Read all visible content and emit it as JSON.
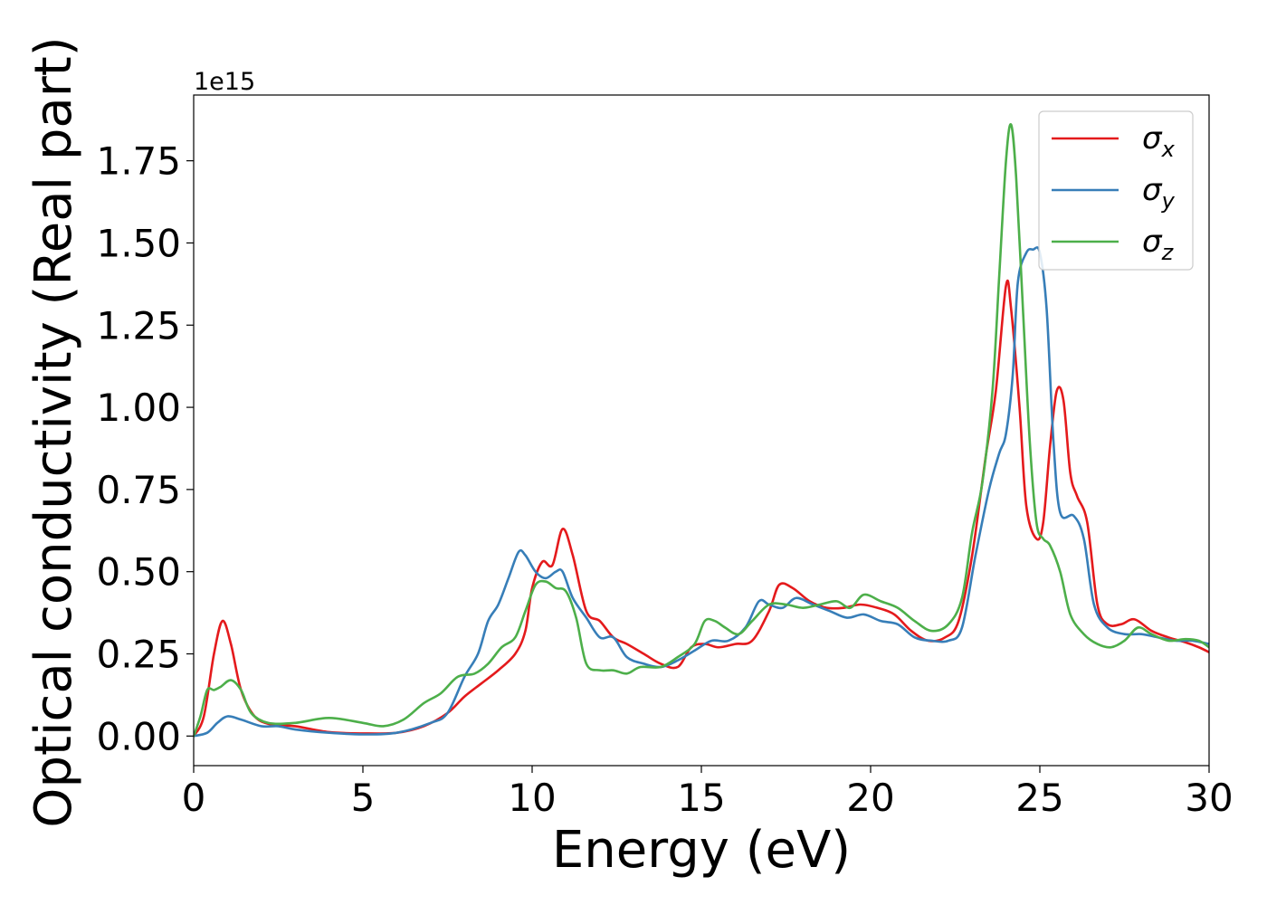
{
  "chart_data": {
    "type": "line",
    "xlabel": "Energy (eV)",
    "ylabel": "Optical conductivity (Real part)",
    "y_offset_text": "1e15",
    "xlim": [
      0,
      30
    ],
    "ylim": [
      -0.09,
      1.95
    ],
    "xticks": [
      0,
      5,
      10,
      15,
      20,
      25,
      30
    ],
    "xtick_labels": [
      "0",
      "5",
      "10",
      "15",
      "20",
      "25",
      "30"
    ],
    "yticks": [
      0.0,
      0.25,
      0.5,
      0.75,
      1.0,
      1.25,
      1.5,
      1.75
    ],
    "ytick_labels": [
      "0.00",
      "0.25",
      "0.50",
      "0.75",
      "1.00",
      "1.25",
      "1.50",
      "1.75"
    ],
    "grid": false,
    "legend_position": "top-right",
    "series": [
      {
        "name": "σx",
        "legend_base": "σ",
        "legend_sub": "x",
        "color": "#e41a1c",
        "x": [
          0,
          0.3,
          0.6,
          0.85,
          1.1,
          1.4,
          1.8,
          2.3,
          3.0,
          4.0,
          5.0,
          6.0,
          6.8,
          7.5,
          8.0,
          8.5,
          9.0,
          9.5,
          9.8,
          10.0,
          10.3,
          10.6,
          10.9,
          11.2,
          11.6,
          12.0,
          12.4,
          12.8,
          13.3,
          13.8,
          14.3,
          14.7,
          15.1,
          15.5,
          16.0,
          16.5,
          17.0,
          17.3,
          17.7,
          18.2,
          18.7,
          19.2,
          19.7,
          20.2,
          20.7,
          21.2,
          21.7,
          22.2,
          22.6,
          23.0,
          23.4,
          23.7,
          24.0,
          24.15,
          24.4,
          24.6,
          24.9,
          25.1,
          25.3,
          25.5,
          25.7,
          25.9,
          26.1,
          26.4,
          26.7,
          27.0,
          27.4,
          27.8,
          28.3,
          28.8,
          29.3,
          29.7,
          30.0
        ],
        "y": [
          0.0,
          0.06,
          0.25,
          0.35,
          0.28,
          0.14,
          0.06,
          0.035,
          0.03,
          0.012,
          0.008,
          0.01,
          0.03,
          0.07,
          0.12,
          0.16,
          0.2,
          0.25,
          0.32,
          0.45,
          0.53,
          0.52,
          0.63,
          0.55,
          0.38,
          0.35,
          0.3,
          0.28,
          0.25,
          0.22,
          0.21,
          0.27,
          0.28,
          0.27,
          0.28,
          0.29,
          0.38,
          0.46,
          0.45,
          0.41,
          0.39,
          0.39,
          0.4,
          0.39,
          0.37,
          0.32,
          0.29,
          0.3,
          0.35,
          0.55,
          0.85,
          1.05,
          1.37,
          1.3,
          1.0,
          0.7,
          0.6,
          0.65,
          0.88,
          1.05,
          1.02,
          0.8,
          0.73,
          0.65,
          0.4,
          0.34,
          0.34,
          0.355,
          0.32,
          0.3,
          0.285,
          0.27,
          0.255
        ]
      },
      {
        "name": "σy",
        "legend_base": "σ",
        "legend_sub": "y",
        "color": "#377eb8",
        "x": [
          0,
          0.4,
          0.7,
          1.0,
          1.4,
          2.0,
          2.5,
          3.0,
          4.0,
          5.0,
          6.0,
          7.0,
          7.5,
          8.0,
          8.4,
          8.7,
          9.0,
          9.3,
          9.6,
          9.8,
          10.1,
          10.4,
          10.7,
          10.9,
          11.2,
          11.6,
          12.0,
          12.4,
          12.8,
          13.3,
          13.8,
          14.3,
          14.8,
          15.3,
          15.8,
          16.3,
          16.7,
          17.0,
          17.4,
          17.8,
          18.3,
          18.8,
          19.3,
          19.8,
          20.3,
          20.8,
          21.3,
          21.8,
          22.3,
          22.7,
          23.1,
          23.5,
          23.8,
          24.0,
          24.2,
          24.35,
          24.6,
          24.8,
          25.0,
          25.2,
          25.4,
          25.6,
          26.0,
          26.3,
          26.6,
          27.0,
          27.5,
          28.0,
          28.5,
          29.0,
          29.5,
          30.0
        ],
        "y": [
          0.0,
          0.01,
          0.04,
          0.06,
          0.05,
          0.03,
          0.03,
          0.02,
          0.01,
          0.005,
          0.01,
          0.04,
          0.07,
          0.18,
          0.25,
          0.35,
          0.4,
          0.48,
          0.56,
          0.55,
          0.5,
          0.48,
          0.5,
          0.5,
          0.42,
          0.36,
          0.3,
          0.3,
          0.24,
          0.22,
          0.21,
          0.23,
          0.26,
          0.29,
          0.29,
          0.33,
          0.41,
          0.4,
          0.39,
          0.42,
          0.4,
          0.38,
          0.36,
          0.37,
          0.35,
          0.34,
          0.3,
          0.29,
          0.29,
          0.33,
          0.55,
          0.75,
          0.86,
          0.92,
          1.1,
          1.38,
          1.47,
          1.48,
          1.47,
          1.3,
          0.9,
          0.68,
          0.67,
          0.6,
          0.4,
          0.33,
          0.31,
          0.31,
          0.3,
          0.29,
          0.29,
          0.28
        ]
      },
      {
        "name": "σz",
        "legend_base": "σ",
        "legend_sub": "z",
        "color": "#4daf4a",
        "x": [
          0,
          0.2,
          0.4,
          0.6,
          0.8,
          1.1,
          1.4,
          1.7,
          2.2,
          3.0,
          4.0,
          5.0,
          5.6,
          6.2,
          6.8,
          7.3,
          7.8,
          8.3,
          8.7,
          9.1,
          9.5,
          9.8,
          10.1,
          10.4,
          10.7,
          11.0,
          11.3,
          11.6,
          12.0,
          12.4,
          12.8,
          13.2,
          13.8,
          14.3,
          14.8,
          15.1,
          15.4,
          15.7,
          16.1,
          16.5,
          17.0,
          17.5,
          18.0,
          18.5,
          19.0,
          19.4,
          19.8,
          20.3,
          20.8,
          21.3,
          21.8,
          22.3,
          22.7,
          23.0,
          23.3,
          23.6,
          23.8,
          24.0,
          24.15,
          24.3,
          24.5,
          24.7,
          24.9,
          25.1,
          25.3,
          25.6,
          25.9,
          26.3,
          26.7,
          27.1,
          27.5,
          27.9,
          28.3,
          28.8,
          29.3,
          29.7,
          30.0
        ],
        "y": [
          0.0,
          0.06,
          0.14,
          0.14,
          0.15,
          0.17,
          0.14,
          0.07,
          0.04,
          0.04,
          0.055,
          0.04,
          0.03,
          0.05,
          0.1,
          0.13,
          0.18,
          0.19,
          0.22,
          0.27,
          0.3,
          0.38,
          0.46,
          0.47,
          0.45,
          0.44,
          0.36,
          0.22,
          0.2,
          0.2,
          0.19,
          0.21,
          0.21,
          0.24,
          0.28,
          0.35,
          0.35,
          0.33,
          0.31,
          0.35,
          0.4,
          0.4,
          0.39,
          0.4,
          0.41,
          0.39,
          0.43,
          0.41,
          0.39,
          0.35,
          0.32,
          0.34,
          0.42,
          0.62,
          0.77,
          1.05,
          1.4,
          1.75,
          1.86,
          1.7,
          1.3,
          0.9,
          0.65,
          0.6,
          0.58,
          0.5,
          0.37,
          0.31,
          0.28,
          0.27,
          0.29,
          0.33,
          0.31,
          0.29,
          0.295,
          0.29,
          0.27
        ]
      }
    ]
  }
}
